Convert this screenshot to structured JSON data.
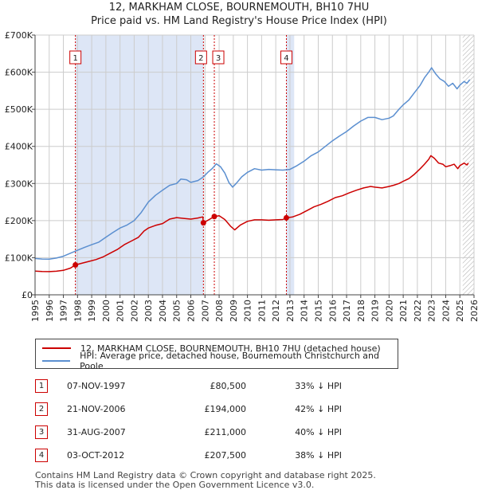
{
  "title_line1": "12, MARKHAM CLOSE, BOURNEMOUTH, BH10 7HU",
  "title_line2": "Price paid vs. HM Land Registry's House Price Index (HPI)",
  "colors": {
    "property": "#cc0000",
    "hpi": "#5b8fd0",
    "shade": "#dde6f6",
    "marker_line": "#cc0000"
  },
  "chart_data": {
    "type": "line",
    "xlim": [
      1995,
      2026
    ],
    "ylim": [
      0,
      700000
    ],
    "y_ticks": [
      {
        "value": 0,
        "label": "£0"
      },
      {
        "value": 100000,
        "label": "£100K"
      },
      {
        "value": 200000,
        "label": "£200K"
      },
      {
        "value": 300000,
        "label": "£300K"
      },
      {
        "value": 400000,
        "label": "£400K"
      },
      {
        "value": 500000,
        "label": "£500K"
      },
      {
        "value": 600000,
        "label": "£600K"
      },
      {
        "value": 700000,
        "label": "£700K"
      }
    ],
    "x_ticks": [
      "1995",
      "1996",
      "1997",
      "1998",
      "1999",
      "2000",
      "2001",
      "2002",
      "2003",
      "2004",
      "2005",
      "2006",
      "2007",
      "2008",
      "2009",
      "2010",
      "2011",
      "2012",
      "2013",
      "2014",
      "2015",
      "2016",
      "2017",
      "2018",
      "2019",
      "2020",
      "2021",
      "2022",
      "2023",
      "2024",
      "2025",
      "2026"
    ],
    "shaded_ranges": [
      [
        1997.85,
        2006.89
      ],
      [
        2012.75,
        2013.3
      ]
    ],
    "hatched_from": 2025.2,
    "series": [
      {
        "name": "12, MARKHAM CLOSE, BOURNEMOUTH, BH10 7HU (detached house)",
        "color": "#cc0000",
        "points": [
          [
            1995.0,
            64000
          ],
          [
            1995.5,
            63000
          ],
          [
            1996.0,
            62500
          ],
          [
            1996.5,
            63500
          ],
          [
            1997.0,
            66000
          ],
          [
            1997.5,
            72000
          ],
          [
            1997.85,
            80500
          ],
          [
            1998.3,
            85000
          ],
          [
            1998.8,
            90000
          ],
          [
            1999.3,
            95000
          ],
          [
            1999.8,
            102000
          ],
          [
            2000.3,
            112000
          ],
          [
            2000.8,
            122000
          ],
          [
            2001.3,
            135000
          ],
          [
            2001.8,
            145000
          ],
          [
            2002.3,
            155000
          ],
          [
            2002.7,
            172000
          ],
          [
            2003.0,
            180000
          ],
          [
            2003.5,
            187000
          ],
          [
            2004.0,
            192000
          ],
          [
            2004.5,
            204000
          ],
          [
            2005.0,
            208000
          ],
          [
            2005.5,
            206000
          ],
          [
            2006.0,
            204000
          ],
          [
            2006.5,
            207000
          ],
          [
            2006.85,
            210000
          ],
          [
            2006.89,
            194000
          ],
          [
            2007.3,
            203000
          ],
          [
            2007.66,
            211000
          ],
          [
            2008.0,
            213000
          ],
          [
            2008.4,
            203000
          ],
          [
            2008.8,
            185000
          ],
          [
            2009.1,
            175000
          ],
          [
            2009.5,
            188000
          ],
          [
            2010.0,
            198000
          ],
          [
            2010.5,
            202000
          ],
          [
            2011.0,
            202000
          ],
          [
            2011.5,
            201000
          ],
          [
            2012.0,
            202000
          ],
          [
            2012.5,
            203000
          ],
          [
            2012.75,
            207500
          ],
          [
            2013.2,
            210000
          ],
          [
            2013.7,
            217000
          ],
          [
            2014.2,
            227000
          ],
          [
            2014.7,
            237000
          ],
          [
            2015.2,
            244000
          ],
          [
            2015.7,
            252000
          ],
          [
            2016.2,
            262000
          ],
          [
            2016.7,
            267000
          ],
          [
            2017.2,
            275000
          ],
          [
            2017.7,
            282000
          ],
          [
            2018.2,
            288000
          ],
          [
            2018.7,
            292000
          ],
          [
            2019.0,
            290000
          ],
          [
            2019.5,
            288000
          ],
          [
            2020.0,
            292000
          ],
          [
            2020.3,
            295000
          ],
          [
            2020.7,
            300000
          ],
          [
            2021.0,
            306000
          ],
          [
            2021.4,
            313000
          ],
          [
            2021.8,
            325000
          ],
          [
            2022.2,
            340000
          ],
          [
            2022.5,
            352000
          ],
          [
            2022.8,
            365000
          ],
          [
            2022.95,
            375000
          ],
          [
            2023.2,
            368000
          ],
          [
            2023.5,
            355000
          ],
          [
            2023.8,
            352000
          ],
          [
            2024.0,
            345000
          ],
          [
            2024.3,
            348000
          ],
          [
            2024.6,
            352000
          ],
          [
            2024.85,
            340000
          ],
          [
            2025.0,
            348000
          ],
          [
            2025.3,
            355000
          ],
          [
            2025.5,
            350000
          ],
          [
            2025.6,
            355000
          ]
        ]
      },
      {
        "name": "HPI: Average price, detached house, Bournemouth Christchurch and Poole",
        "color": "#5b8fd0",
        "points": [
          [
            1995.0,
            98000
          ],
          [
            1995.5,
            96500
          ],
          [
            1996.0,
            96000
          ],
          [
            1996.5,
            99000
          ],
          [
            1997.0,
            104000
          ],
          [
            1997.5,
            112000
          ],
          [
            1998.0,
            120000
          ],
          [
            1998.5,
            128000
          ],
          [
            1999.0,
            135000
          ],
          [
            1999.5,
            142000
          ],
          [
            2000.0,
            155000
          ],
          [
            2000.5,
            168000
          ],
          [
            2001.0,
            180000
          ],
          [
            2001.5,
            188000
          ],
          [
            2002.0,
            200000
          ],
          [
            2002.5,
            222000
          ],
          [
            2003.0,
            250000
          ],
          [
            2003.5,
            268000
          ],
          [
            2004.0,
            282000
          ],
          [
            2004.5,
            295000
          ],
          [
            2005.0,
            300000
          ],
          [
            2005.3,
            312000
          ],
          [
            2005.7,
            310000
          ],
          [
            2006.0,
            303000
          ],
          [
            2006.5,
            308000
          ],
          [
            2006.9,
            318000
          ],
          [
            2007.2,
            330000
          ],
          [
            2007.5,
            340000
          ],
          [
            2007.8,
            353000
          ],
          [
            2008.1,
            345000
          ],
          [
            2008.4,
            328000
          ],
          [
            2008.7,
            302000
          ],
          [
            2008.95,
            290000
          ],
          [
            2009.2,
            300000
          ],
          [
            2009.6,
            318000
          ],
          [
            2010.0,
            330000
          ],
          [
            2010.5,
            340000
          ],
          [
            2011.0,
            336000
          ],
          [
            2011.5,
            338000
          ],
          [
            2012.0,
            337000
          ],
          [
            2012.5,
            336000
          ],
          [
            2013.0,
            338000
          ],
          [
            2013.5,
            348000
          ],
          [
            2014.0,
            360000
          ],
          [
            2014.5,
            375000
          ],
          [
            2015.0,
            385000
          ],
          [
            2015.5,
            400000
          ],
          [
            2016.0,
            415000
          ],
          [
            2016.5,
            428000
          ],
          [
            2017.0,
            440000
          ],
          [
            2017.5,
            455000
          ],
          [
            2018.0,
            468000
          ],
          [
            2018.5,
            478000
          ],
          [
            2019.0,
            478000
          ],
          [
            2019.5,
            472000
          ],
          [
            2020.0,
            476000
          ],
          [
            2020.3,
            482000
          ],
          [
            2020.7,
            500000
          ],
          [
            2021.0,
            512000
          ],
          [
            2021.4,
            525000
          ],
          [
            2021.8,
            545000
          ],
          [
            2022.2,
            565000
          ],
          [
            2022.5,
            585000
          ],
          [
            2022.8,
            600000
          ],
          [
            2023.0,
            612000
          ],
          [
            2023.3,
            595000
          ],
          [
            2023.6,
            582000
          ],
          [
            2023.9,
            575000
          ],
          [
            2024.2,
            562000
          ],
          [
            2024.5,
            570000
          ],
          [
            2024.8,
            555000
          ],
          [
            2025.0,
            565000
          ],
          [
            2025.3,
            575000
          ],
          [
            2025.5,
            570000
          ],
          [
            2025.7,
            580000
          ]
        ]
      }
    ],
    "markers": [
      {
        "num": "1",
        "x": 1997.85,
        "y": 80500
      },
      {
        "num": "2",
        "x": 2006.89,
        "y": 194000
      },
      {
        "num": "3",
        "x": 2007.66,
        "y": 211000
      },
      {
        "num": "4",
        "x": 2012.75,
        "y": 207500
      }
    ]
  },
  "legend": {
    "property_label": "12, MARKHAM CLOSE, BOURNEMOUTH, BH10 7HU (detached house)",
    "hpi_label": "HPI: Average price, detached house, Bournemouth Christchurch and Poole"
  },
  "sales": [
    {
      "num": "1",
      "date": "07-NOV-1997",
      "price": "£80,500",
      "hpi": "33% ↓ HPI"
    },
    {
      "num": "2",
      "date": "21-NOV-2006",
      "price": "£194,000",
      "hpi": "42% ↓ HPI"
    },
    {
      "num": "3",
      "date": "31-AUG-2007",
      "price": "£211,000",
      "hpi": "40% ↓ HPI"
    },
    {
      "num": "4",
      "date": "03-OCT-2012",
      "price": "£207,500",
      "hpi": "38% ↓ HPI"
    }
  ],
  "footer": {
    "line1": "Contains HM Land Registry data © Crown copyright and database right 2025.",
    "line2": "This data is licensed under the Open Government Licence v3.0."
  }
}
